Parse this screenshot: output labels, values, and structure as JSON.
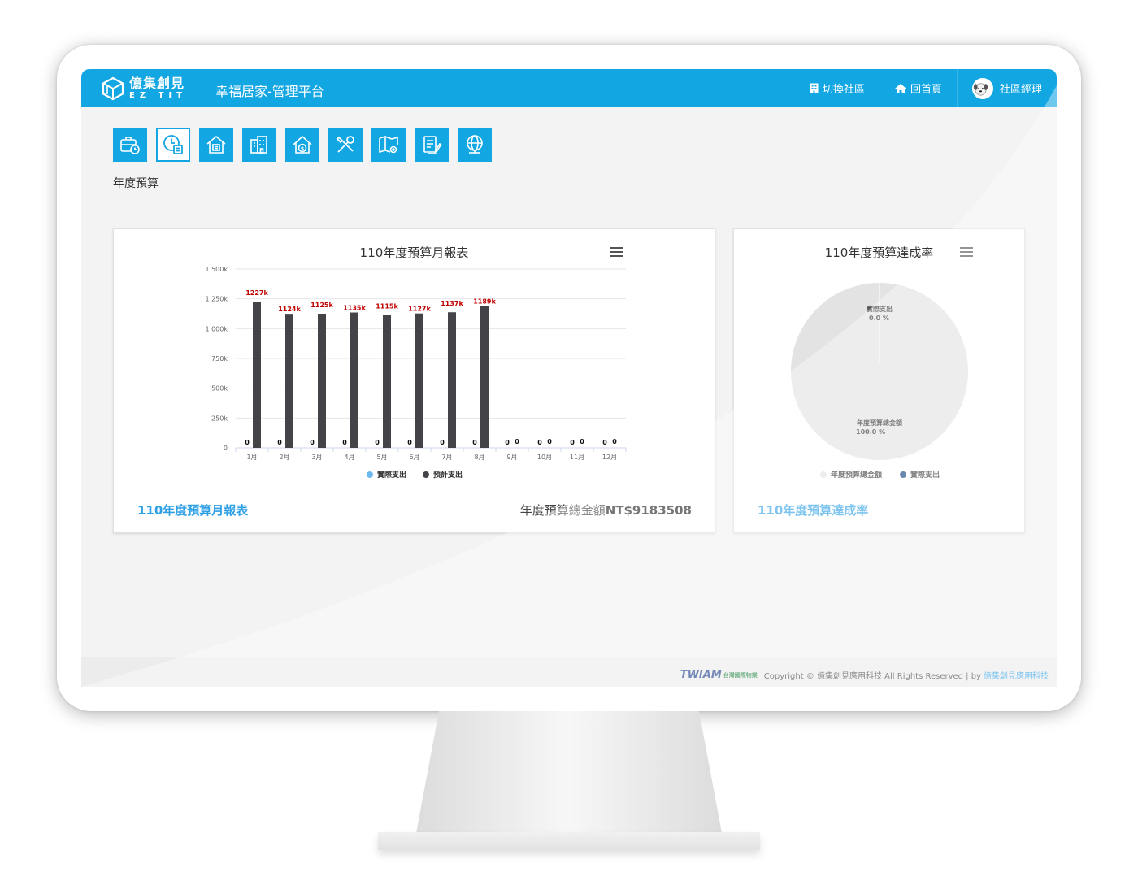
{
  "brand": {
    "name_cn": "億集創見",
    "name_en": "EZ TIT"
  },
  "header": {
    "platform_title": "幸福居家-管理平台",
    "nav": {
      "switch": "切換社區",
      "home": "回首頁",
      "user": "社區經理"
    }
  },
  "toolbar": {
    "icons": [
      "briefcase-clock-icon",
      "clock-ledger-icon",
      "house-document-icon",
      "buildings-icon",
      "house-money-icon",
      "tools-icon",
      "map-gear-icon",
      "papers-pen-icon",
      "globe-money-icon"
    ],
    "active_index": 1
  },
  "page": {
    "heading": "年度預算"
  },
  "bar_card": {
    "link": "110年度預算月報表",
    "total_label": "年度預算總金額",
    "total_value": "NT$9183508"
  },
  "pie_card": {
    "link": "110年度預算達成率"
  },
  "colors": {
    "primary": "#12a6e2",
    "actual": "#6bb7ef",
    "planned": "#434348",
    "pie_total": "#e3e3e3",
    "pie_actual": "#0e3f7e",
    "data_label_red": "#c00000"
  },
  "chart_data": [
    {
      "type": "bar",
      "title": "110年度預算月報表",
      "categories": [
        "1月",
        "2月",
        "3月",
        "4月",
        "5月",
        "6月",
        "7月",
        "8月",
        "9月",
        "10月",
        "11月",
        "12月"
      ],
      "series": [
        {
          "name": "實際支出",
          "values": [
            0,
            0,
            0,
            0,
            0,
            0,
            0,
            0,
            0,
            0,
            0,
            0
          ],
          "labels": [
            "0",
            "0",
            "0",
            "0",
            "0",
            "0",
            "0",
            "0",
            "0",
            "0",
            "0",
            "0"
          ]
        },
        {
          "name": "預計支出",
          "values": [
            1227,
            1124,
            1125,
            1135,
            1115,
            1127,
            1137,
            1189,
            0,
            0,
            0,
            0
          ],
          "labels": [
            "1227k",
            "1124k",
            "1125k",
            "1135k",
            "1115k",
            "1127k",
            "1137k",
            "1189k",
            "0",
            "0",
            "0",
            "0"
          ]
        }
      ],
      "yunit": "k",
      "ylim": [
        0,
        1500
      ],
      "yticks": [
        "0",
        "250k",
        "500k",
        "750k",
        "1 000k",
        "1 250k",
        "1 500k"
      ],
      "grid": true,
      "legend": "bottom-center"
    },
    {
      "type": "pie",
      "title": "110年度預算達成率",
      "slices": [
        {
          "name": "年度預算總金額",
          "value": 100.0,
          "label": "100.0 %"
        },
        {
          "name": "實際支出",
          "value": 0.0,
          "label": "0.0 %"
        }
      ],
      "legend": "bottom-center"
    }
  ],
  "footer": {
    "partner": "TWIAM",
    "partner_sub": "台灣國際物業",
    "copyright": "Copyright © 億集創見應用科技 All Rights Reserved | by",
    "link": "億集創見應用科技"
  }
}
